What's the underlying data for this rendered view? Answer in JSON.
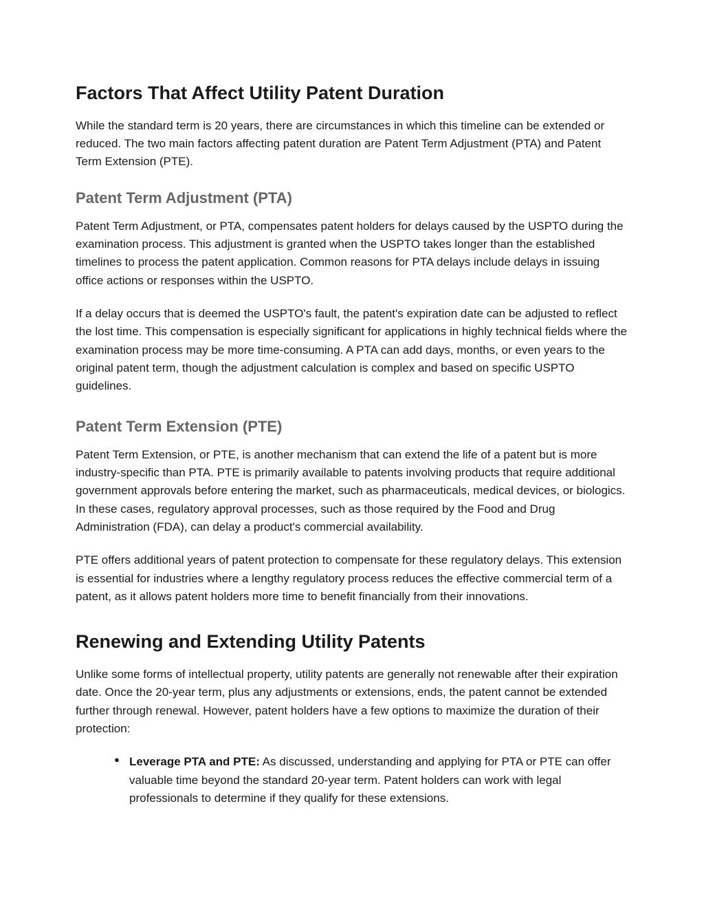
{
  "section1": {
    "heading": "Factors That Affect Utility Patent Duration",
    "intro": "While the standard term is 20 years, there are circumstances in which this timeline can be extended or reduced. The two main factors affecting patent duration are Patent Term Adjustment (PTA) and Patent Term Extension (PTE).",
    "sub1": {
      "heading": "Patent Term Adjustment (PTA)",
      "p1": "Patent Term Adjustment, or PTA, compensates patent holders for delays caused by the USPTO during the examination process. This adjustment is granted when the USPTO takes longer than the established timelines to process the patent application. Common reasons for PTA delays include delays in issuing office actions or responses within the USPTO.",
      "p2": "If a delay occurs that is deemed the USPTO's fault, the patent's expiration date can be adjusted to reflect the lost time. This compensation is especially significant for applications in highly technical fields where the examination process may be more time-consuming. A PTA can add days, months, or even years to the original patent term, though the adjustment calculation is complex and based on specific USPTO guidelines."
    },
    "sub2": {
      "heading": "Patent Term Extension (PTE)",
      "p1": "Patent Term Extension, or PTE, is another mechanism that can extend the life of a patent but is more industry-specific than PTA. PTE is primarily available to patents involving products that require additional government approvals before entering the market, such as pharmaceuticals, medical devices, or biologics. In these cases, regulatory approval processes, such as those required by the Food and Drug Administration (FDA), can delay a product's commercial availability.",
      "p2": "PTE offers additional years of patent protection to compensate for these regulatory delays. This extension is essential for industries where a lengthy regulatory process reduces the effective commercial term of a patent, as it allows patent holders more time to benefit financially from their innovations."
    }
  },
  "section2": {
    "heading": "Renewing and Extending Utility Patents",
    "intro": "Unlike some forms of intellectual property, utility patents are generally not renewable after their expiration date. Once the 20-year term, plus any adjustments or extensions, ends, the patent cannot be extended further through renewal. However, patent holders have a few options to maximize the duration of their protection:",
    "bullet1": {
      "label": "Leverage PTA and PTE:",
      "text": " As discussed, understanding and applying for PTA or PTE can offer valuable time beyond the standard 20-year term. Patent holders can work with legal professionals to determine if they qualify for these extensions."
    }
  },
  "colors": {
    "background": "#ffffff",
    "text": "#1a1a1a",
    "subheading": "#666666"
  },
  "typography": {
    "h1_fontsize": 27,
    "h2_fontsize": 22,
    "body_fontsize": 17,
    "font_family": "Arial"
  }
}
